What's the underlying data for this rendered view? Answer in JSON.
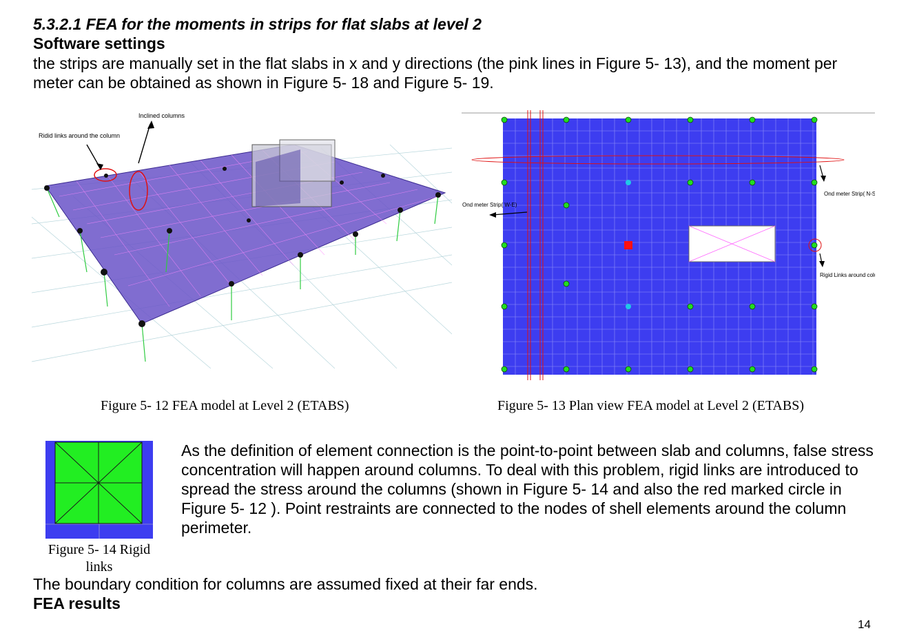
{
  "heading": "5.3.2.1 FEA for the moments in strips for flat slabs at level 2",
  "subheading": "Software settings",
  "intro_paragraph": "the strips are manually set in the flat slabs in x and y directions (the pink lines in Figure 5- 13), and the moment per meter can be obtained as shown in Figure 5- 18 and Figure 5- 19.",
  "figure_12": {
    "caption": "Figure 5- 12 FEA model at Level 2 (ETABS)",
    "annotation_rigid_links": "Ridid links around the column",
    "annotation_inclined_columns": "Inclined columns",
    "colors": {
      "slab": "#6a54c8",
      "grid": "#ff88ff",
      "column": "#2ecc40",
      "marker": "#e01010"
    }
  },
  "figure_13": {
    "caption": "Figure 5- 13 Plan view FEA model at Level 2 (ETABS)",
    "annotation_strip_we": "Ond meter Strip( W-E)",
    "annotation_strip_ns": "Ond meter Strip( N-S)",
    "annotation_rigid_links": "Rigid Links around column perimeter",
    "colors": {
      "slab": "#3d3df0",
      "strip": "#e01010",
      "node": "#22dd22",
      "node_alt": "#20c8e8",
      "node_red": "#ff1010"
    }
  },
  "figure_14": {
    "caption_line1": "Figure 5- 14 Rigid",
    "caption_line2": "links",
    "colors": {
      "fill": "#22ee22",
      "border": "#3d3df0"
    }
  },
  "body_paragraph": "As the definition of element connection is the point-to-point between slab and columns, false stress concentration will happen around columns. To deal with this problem, rigid links are introduced to spread the stress around the columns (shown in Figure 5- 14 and also the red marked circle in Figure 5- 12 ). Point restraints are connected to the nodes of shell elements around the column perimeter.",
  "boundary_paragraph": "The boundary condition for columns are assumed fixed at their far ends.",
  "results_heading": "FEA results",
  "page_number": "14"
}
